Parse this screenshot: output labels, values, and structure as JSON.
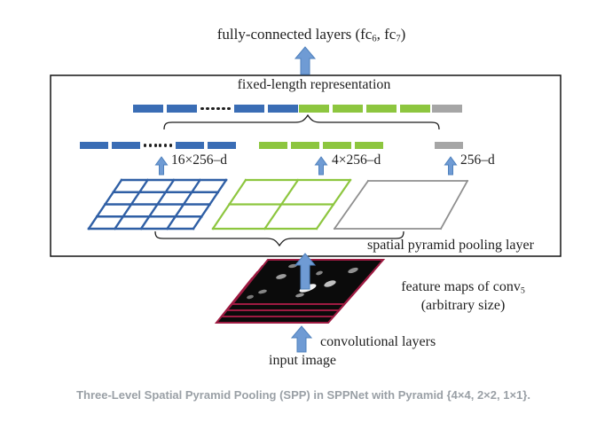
{
  "colors": {
    "bar_blue": "#3a6db5",
    "bar_green": "#8dc63f",
    "bar_gray": "#a6a6a6",
    "arrow_fill": "#6f9bd4",
    "arrow_stroke": "#4f81bd",
    "grid_blue": "#2f5fa5",
    "grid_green": "#8dc63f",
    "grid_gray": "#8f8f8f",
    "box_border": "#141414",
    "brace": "#1a1a1a",
    "feature_map_border": "#9e1b42",
    "feature_map_fill": "#0b0b0b",
    "diagram_text": "#1f1f1f",
    "caption_text": "#9aa0a6"
  },
  "labels": {
    "fc_p1": "fully-connected layers (fc",
    "fc_sub1": "6",
    "fc_p2": ", fc",
    "fc_sub2": "7",
    "fc_p3": ")",
    "fixed_length": "fixed-length representation",
    "pool_16": "16×256–d",
    "pool_4": "4×256–d",
    "pool_1": "256–d",
    "spp_layer": "spatial pyramid pooling layer",
    "feature_maps_p1": "feature maps of conv",
    "feature_maps_sub": "5",
    "feature_maps_p2": "(arbitrary size)",
    "conv_layers": "convolutional layers",
    "input_image": "input image",
    "dots": "......"
  },
  "caption": "Three-Level Spatial Pyramid Pooling (SPP) in SPPNet with Pyramid {4×4, 2×2, 1×1}.",
  "bars": {
    "row_concat": [
      {
        "color": "bar_blue",
        "pattern": [
          "bar",
          "bar",
          "dots",
          "bar",
          "bar"
        ]
      },
      {
        "color": "bar_green",
        "pattern": [
          "bar",
          "bar",
          "bar",
          "bar"
        ]
      },
      {
        "color": "bar_gray",
        "pattern": [
          "bar"
        ]
      }
    ],
    "row_pooled": [
      {
        "color": "bar_blue",
        "pattern": [
          "bar",
          "bar",
          "dots",
          "bar",
          "bar"
        ]
      },
      {
        "color": "bar_green",
        "pattern": [
          "bar",
          "bar",
          "bar",
          "bar"
        ]
      },
      {
        "color": "bar_gray",
        "pattern": [
          "bar"
        ]
      }
    ]
  },
  "pyramid_levels": [
    {
      "grid": "4x4",
      "rows": 4,
      "cols": 4,
      "color": "grid_blue",
      "output": "16×256–d"
    },
    {
      "grid": "2x2",
      "rows": 2,
      "cols": 2,
      "color": "grid_green",
      "output": "4×256–d"
    },
    {
      "grid": "1x1",
      "rows": 1,
      "cols": 1,
      "color": "grid_gray",
      "output": "256–d"
    }
  ],
  "feature_maps": {
    "layer_count": 4
  }
}
